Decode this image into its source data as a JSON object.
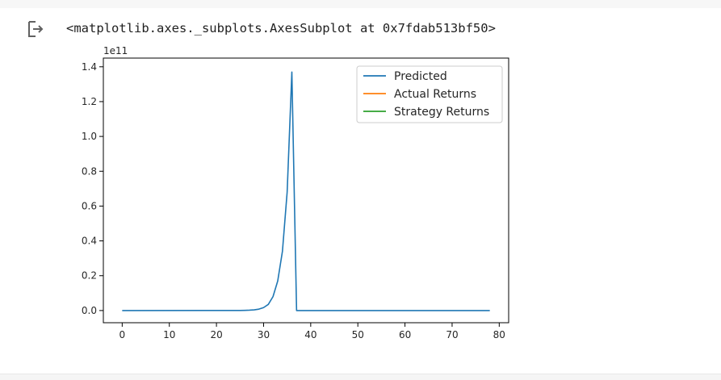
{
  "output": {
    "icon": "output-arrow-icon",
    "text": "<matplotlib.axes._subplots.AxesSubplot at 0x7fdab513bf50>"
  },
  "chart_data": {
    "type": "line",
    "offset_label": "1e11",
    "xlim": [
      -4,
      82
    ],
    "ylim": [
      -0.07,
      1.45
    ],
    "x_ticks": [
      0,
      10,
      20,
      30,
      40,
      50,
      60,
      70,
      80
    ],
    "x_tick_labels": [
      "0",
      "10",
      "20",
      "30",
      "40",
      "50",
      "60",
      "70",
      "80"
    ],
    "y_ticks": [
      0.0,
      0.2,
      0.4,
      0.6,
      0.8,
      1.0,
      1.2,
      1.4
    ],
    "y_tick_labels": [
      "0.0",
      "0.2",
      "0.4",
      "0.6",
      "0.8",
      "1.0",
      "1.2",
      "1.4"
    ],
    "grid": false,
    "legend_position": "top-right",
    "series": [
      {
        "name": "Predicted",
        "color": "#1f77b4",
        "x": [
          0,
          25,
          26,
          27,
          28,
          29,
          30,
          31,
          32,
          33,
          34,
          35,
          36,
          37,
          78
        ],
        "y": [
          0.0,
          0.0005,
          0.001,
          0.002,
          0.004,
          0.008,
          0.017,
          0.035,
          0.08,
          0.17,
          0.34,
          0.68,
          1.37,
          0.0,
          0.0
        ]
      },
      {
        "name": "Actual Returns",
        "color": "#ff7f0e",
        "x": [],
        "y": []
      },
      {
        "name": "Strategy Returns",
        "color": "#2ca02c",
        "x": [],
        "y": []
      }
    ]
  }
}
